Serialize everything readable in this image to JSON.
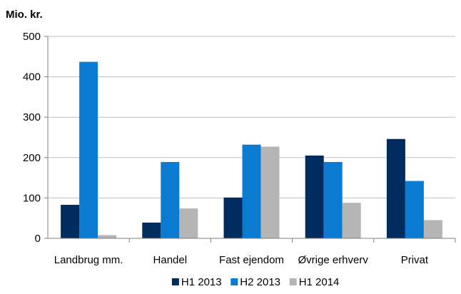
{
  "chart_data": {
    "type": "bar",
    "title": "",
    "xlabel": "",
    "ylabel": "Mio. kr.",
    "ylim": [
      0,
      500
    ],
    "yticks": [
      0,
      100,
      200,
      300,
      400,
      500
    ],
    "grid": true,
    "legend_position": "bottom",
    "categories": [
      "Landbrug mm.",
      "Handel",
      "Fast ejendom",
      "Øvrige erhverv",
      "Privat"
    ],
    "series": [
      {
        "name": "H1 2013",
        "color": "#002b5e",
        "values": [
          83,
          39,
          101,
          205,
          246
        ]
      },
      {
        "name": "H2 2013",
        "color": "#0a7bd1",
        "values": [
          437,
          189,
          232,
          189,
          142
        ]
      },
      {
        "name": "H1 2014",
        "color": "#b5b5b5",
        "values": [
          8,
          74,
          227,
          88,
          45
        ]
      }
    ]
  }
}
